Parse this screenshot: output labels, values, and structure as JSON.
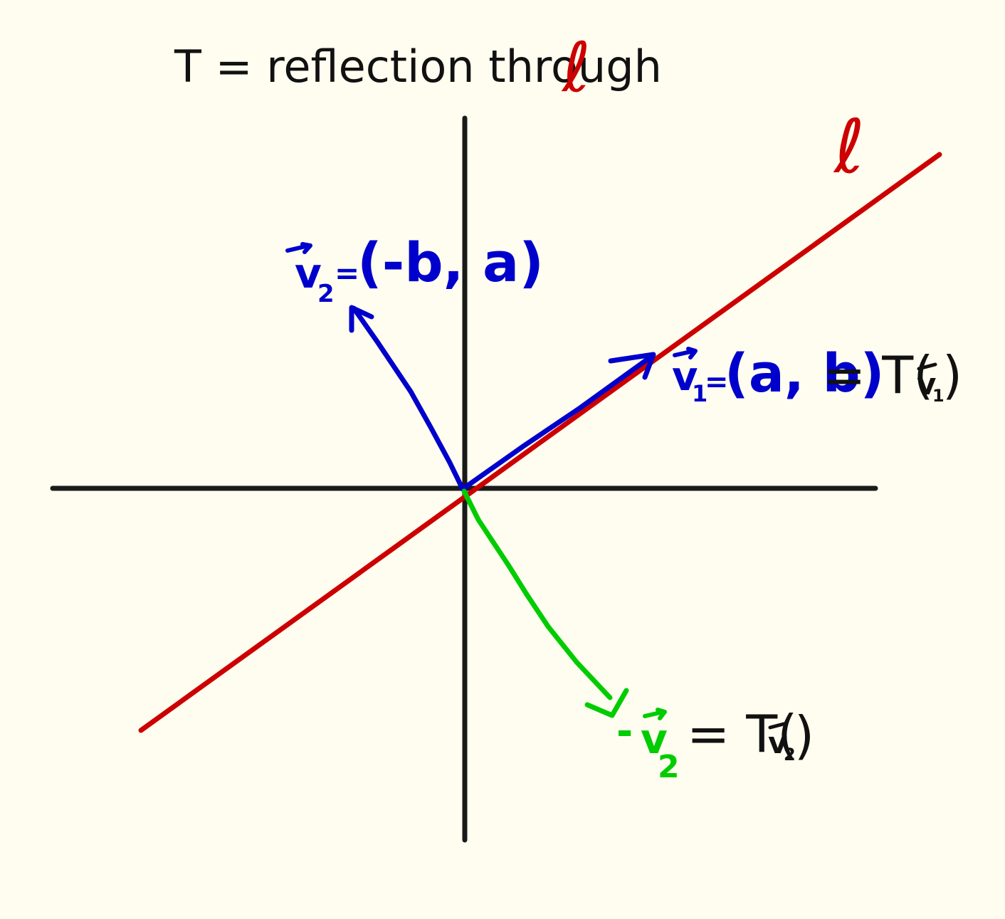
{
  "title": {
    "prefix": "T = reflection through",
    "line_symbol": "ℓ"
  },
  "line_label": "ℓ",
  "vectors": {
    "v1": {
      "name": "v",
      "subscript": "1",
      "equals": "=",
      "value": "(a, b)",
      "image": "= T(",
      "image_name": "v",
      "image_subscript": "1",
      "image_close": ")"
    },
    "v2": {
      "name": "v",
      "subscript": "2",
      "equals": "=",
      "value": "(-b, a)"
    },
    "neg_v2": {
      "prefix": "-",
      "name": "v",
      "subscript": "2",
      "image": "= T(",
      "image_name": "v",
      "image_subscript": "2",
      "image_close": ")"
    }
  },
  "colors": {
    "background": "#fffdef",
    "axes": "#1a1a1a",
    "line": "#cc0000",
    "v1": "#0000cc",
    "v2": "#0000cc",
    "neg_v2": "#00cc00",
    "text": "#111111"
  }
}
